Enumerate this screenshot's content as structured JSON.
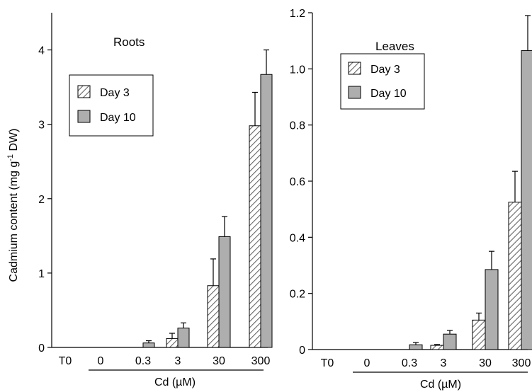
{
  "colors": {
    "day3": "#ffffff",
    "day3_hatch": "#666666",
    "day10": "#aeaeae",
    "axis": "#000000"
  },
  "shared": {
    "ylabel": "Cadmium content (mg g",
    "ylabel_sup": "-1",
    "ylabel_tail": " DW)",
    "xlabel": "Cd (µM)"
  },
  "chart_data": [
    {
      "type": "bar",
      "title": "Roots",
      "categories": [
        "T0",
        "0",
        "0.3",
        "3",
        "30",
        "300"
      ],
      "ylim": [
        0,
        4.5
      ],
      "yticks": [
        0,
        1,
        2,
        3,
        4
      ],
      "ytick_labels": [
        "0",
        "1",
        "2",
        "3",
        "4"
      ],
      "grid": false,
      "legend_position": "upper-left",
      "series": [
        {
          "name": "Day 3",
          "values": [
            0,
            0,
            0,
            0.12,
            0.83,
            2.98
          ],
          "errors": [
            0,
            0,
            0,
            0.07,
            0.36,
            0.45
          ]
        },
        {
          "name": "Day 10",
          "values": [
            0,
            0,
            0.06,
            0.26,
            1.49,
            3.67
          ],
          "errors": [
            0,
            0,
            0.03,
            0.07,
            0.27,
            0.33
          ]
        }
      ]
    },
    {
      "type": "bar",
      "title": "Leaves",
      "categories": [
        "T0",
        "0",
        "0.3",
        "3",
        "30",
        "300"
      ],
      "ylim": [
        0,
        1.2
      ],
      "yticks": [
        0,
        0.2,
        0.4,
        0.6,
        0.8,
        1.0,
        1.2
      ],
      "ytick_labels": [
        "0",
        "0.2",
        "0.4",
        "0.6",
        "0.8",
        "1.0",
        "1.2"
      ],
      "grid": false,
      "legend_position": "upper-left",
      "series": [
        {
          "name": "Day 3",
          "values": [
            0,
            0,
            0,
            0.015,
            0.105,
            0.525
          ],
          "errors": [
            0,
            0,
            0,
            0.003,
            0.025,
            0.11
          ]
        },
        {
          "name": "Day 10",
          "values": [
            0,
            0,
            0.017,
            0.055,
            0.285,
            1.065
          ],
          "errors": [
            0,
            0,
            0.008,
            0.013,
            0.065,
            0.125
          ]
        }
      ]
    }
  ]
}
